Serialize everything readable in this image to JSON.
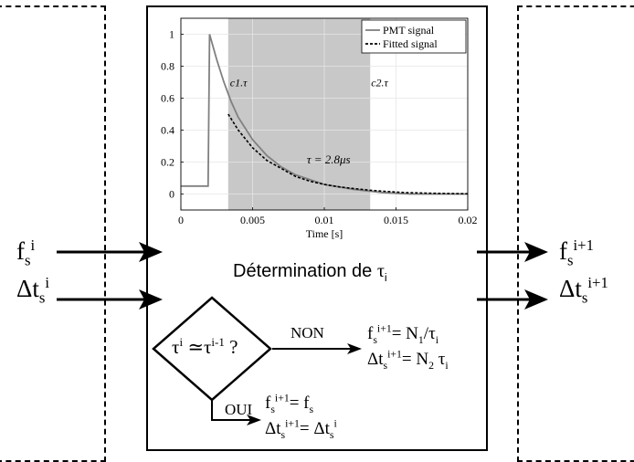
{
  "chart_data": {
    "type": "line",
    "xlabel": "Time [s]",
    "xlim": [
      0,
      0.02
    ],
    "ylim": [
      -0.1,
      1.1
    ],
    "xticks": [
      0,
      0.005,
      0.01,
      0.015,
      0.02
    ],
    "xtick_labels": [
      "0",
      "0.005",
      "0.01",
      "0.015",
      "0.02"
    ],
    "yticks": [
      0,
      0.2,
      0.4,
      0.6,
      0.8,
      1
    ],
    "ytick_labels": [
      "0",
      "0.2",
      "0.4",
      "0.6",
      "0.8",
      "1"
    ],
    "grid": true,
    "legend_position": "top-right",
    "series": [
      {
        "name": "PMT signal",
        "color": "#808080",
        "style": "solid",
        "x": [
          0,
          0.0019,
          0.002,
          0.0025,
          0.003,
          0.0035,
          0.004,
          0.005,
          0.006,
          0.007,
          0.008,
          0.01,
          0.012,
          0.014,
          0.016,
          0.018,
          0.02
        ],
        "y": [
          0.05,
          0.05,
          1.0,
          0.84,
          0.7,
          0.58,
          0.48,
          0.34,
          0.24,
          0.17,
          0.12,
          0.06,
          0.03,
          0.01,
          0.0,
          0.0,
          0.0
        ]
      },
      {
        "name": "Fitted signal",
        "color": "#000000",
        "style": "dashed",
        "x": [
          0.0033,
          0.004,
          0.005,
          0.006,
          0.007,
          0.008,
          0.009,
          0.01,
          0.011,
          0.012,
          0.013,
          0.014,
          0.015,
          0.016,
          0.018,
          0.02
        ],
        "y": [
          0.5,
          0.4,
          0.29,
          0.21,
          0.16,
          0.11,
          0.08,
          0.06,
          0.045,
          0.035,
          0.025,
          0.018,
          0.012,
          0.008,
          0.004,
          0.002
        ]
      }
    ],
    "shaded_region": {
      "x": [
        0.0033,
        0.0132
      ],
      "color": "#c8c8c8"
    },
    "annotations": [
      {
        "text": "c1.τ",
        "x": 0.0033,
        "y": 0.72
      },
      {
        "text": "c2.τ",
        "x": 0.0132,
        "y": 0.72
      },
      {
        "text": "τ = 2.8μs",
        "x": 0.0103,
        "y": 0.22
      }
    ]
  },
  "labels": {
    "left_f": {
      "base": "f",
      "sub": "s",
      "sup": "i"
    },
    "left_dt": {
      "base": "Δt",
      "sub": "s",
      "sup": "i"
    },
    "right_f": {
      "base": "f",
      "sub": "s",
      "sup": "i+1"
    },
    "right_dt": {
      "base": "Δt",
      "sub": "s",
      "sup": "i+1"
    },
    "determination_prefix": "Détermination de ",
    "determination_sym": "τ",
    "determination_sub": "i",
    "decision_tau": "τ",
    "decision_sup_i": "i",
    "decision_sim": " ≃",
    "decision_sup_im1": "i-1",
    "decision_q": " ?",
    "non": "NON",
    "oui": "OUI",
    "non_eq1_left": "f",
    "non_eq1_sub": "s",
    "non_eq1_sup": "i+1",
    "non_eq1_mid": "= N",
    "non_eq1_sub2": "1",
    "non_eq1_right": "/τ",
    "non_eq1_sub3": "i",
    "non_eq2_left": "Δt",
    "non_eq2_sub": "s",
    "non_eq2_sup": "i+1",
    "non_eq2_mid": "= N",
    "non_eq2_sub2": "2",
    "non_eq2_right": " τ",
    "non_eq2_sub3": "i",
    "oui_eq1_left": "f",
    "oui_eq1_sub": "s",
    "oui_eq1_sup": "i+1",
    "oui_eq1_mid": "= f",
    "oui_eq1_sub2": "s",
    "oui_eq2_left": "Δt",
    "oui_eq2_sub": "s",
    "oui_eq2_sup": "i+1",
    "oui_eq2_mid": "= Δt",
    "oui_eq2_sub2": "s",
    "oui_eq2_sup2": "i"
  }
}
